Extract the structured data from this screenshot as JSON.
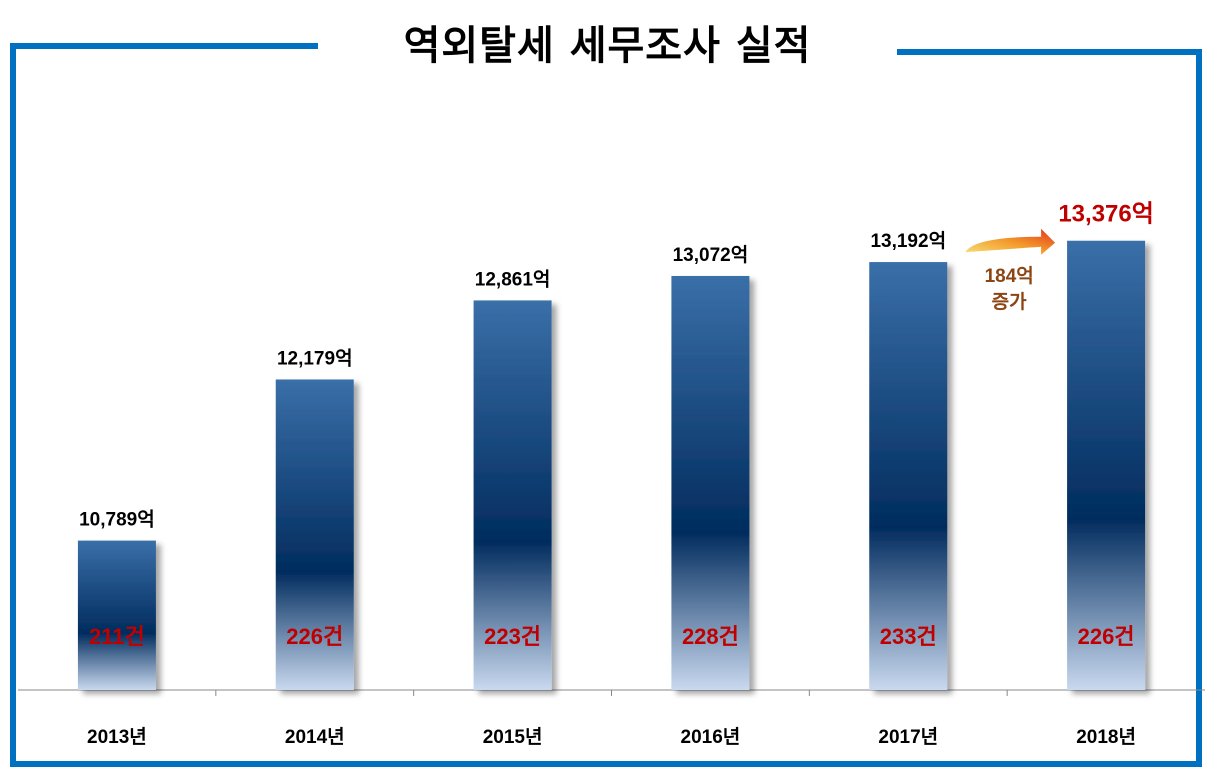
{
  "title": "역외탈세 세무조사 실적",
  "colors": {
    "border": "#0070c0",
    "bar_top": "#3a6fa8",
    "bar_mid": "#012c5e",
    "bar_bottom": "#c9d9ef",
    "value_label": "#000000",
    "highlight_label": "#c00000",
    "count_label": "#c00000",
    "annotation_text": "#8b4513"
  },
  "chart_data": {
    "type": "bar",
    "categories": [
      "2013년",
      "2014년",
      "2015년",
      "2016년",
      "2017년",
      "2018년"
    ],
    "values": [
      10789,
      12179,
      12861,
      13072,
      13192,
      13376
    ],
    "value_labels": [
      "10,789억",
      "12,179억",
      "12,861억",
      "13,072억",
      "13,192억",
      "13,376억"
    ],
    "count_labels": [
      "211건",
      "226건",
      "223건",
      "228건",
      "233건",
      "226건"
    ],
    "highlight_index": 5,
    "annotation": {
      "line1": "184억",
      "line2": "증가",
      "icon": "curved-arrow-icon"
    },
    "ylim": [
      9500,
      13900
    ],
    "grid": false,
    "legend": "none"
  }
}
